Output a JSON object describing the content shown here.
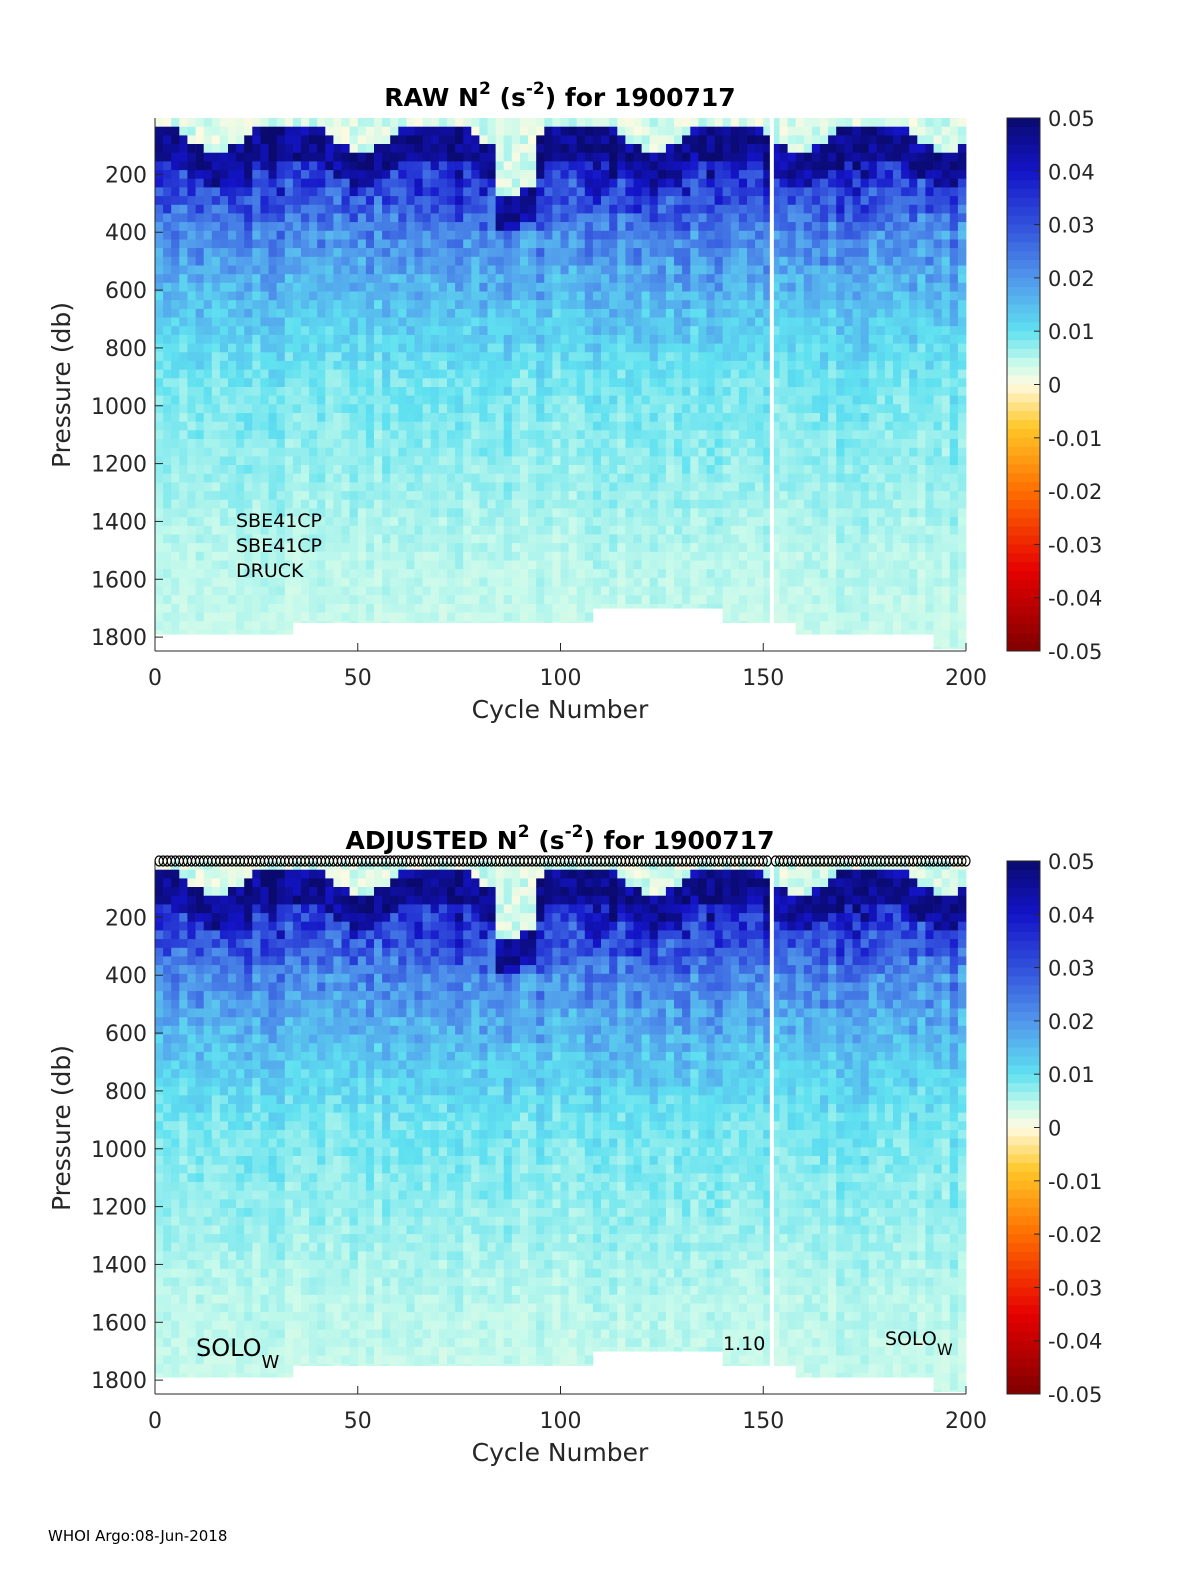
{
  "footer": "WHOI Argo:08-Jun-2018",
  "colors": {
    "axis": "#262626",
    "missing": "#ffffff"
  },
  "chart_data": [
    {
      "type": "heatmap",
      "title_parts": {
        "a": "RAW N",
        "sup1": "2",
        "b": " (s",
        "sup2": "-2",
        "c": ") for 1900717"
      },
      "xlabel": "Cycle Number",
      "ylabel": "Pressure (db)",
      "xlim": [
        0,
        200
      ],
      "ylim": [
        1848,
        5
      ],
      "xticks": [
        "0",
        "50",
        "100",
        "150",
        "200"
      ],
      "yticks": [
        "200",
        "400",
        "600",
        "800",
        "1000",
        "1200",
        "1400",
        "1600",
        "1800"
      ],
      "colorbar": {
        "range": [
          -0.05,
          0.05
        ],
        "ticks": [
          "0.05",
          "0.04",
          "0.03",
          "0.02",
          "0.01",
          "0",
          "-0.01",
          "-0.02",
          "-0.03",
          "-0.04",
          "-0.05"
        ]
      },
      "annotations": [
        "SBE41CP",
        "SBE41CP",
        "DRUCK"
      ],
      "missing_cycles": [
        152
      ],
      "profile": {
        "pressure": [
          0,
          40,
          200,
          400,
          650,
          900,
          1200,
          1500,
          1800
        ],
        "mean_n2": [
          0.0,
          0.045,
          0.035,
          0.022,
          0.014,
          0.009,
          0.007,
          0.005,
          0.004
        ]
      },
      "max_pressure_by_cycle": [
        [
          0,
          33,
          1790
        ],
        [
          33,
          108,
          1750
        ],
        [
          108,
          140,
          1700
        ],
        [
          140,
          158,
          1750
        ],
        [
          158,
          192,
          1790
        ],
        [
          192,
          200,
          1840
        ]
      ]
    },
    {
      "type": "heatmap",
      "title_parts": {
        "a": "ADJUSTED N",
        "sup1": "2",
        "b": " (s",
        "sup2": "-2",
        "c": ") for 1900717"
      },
      "xlabel": "Cycle Number",
      "ylabel": "Pressure (db)",
      "xlim": [
        0,
        200
      ],
      "ylim": [
        1848,
        5
      ],
      "xticks": [
        "0",
        "50",
        "100",
        "150",
        "200"
      ],
      "yticks": [
        "200",
        "400",
        "600",
        "800",
        "1000",
        "1200",
        "1400",
        "1600",
        "1800"
      ],
      "colorbar": {
        "range": [
          -0.05,
          0.05
        ],
        "ticks": [
          "0.05",
          "0.04",
          "0.03",
          "0.02",
          "0.01",
          "0",
          "-0.01",
          "-0.02",
          "-0.03",
          "-0.04",
          "-0.05"
        ]
      },
      "annotations": [
        {
          "text": "SOLO",
          "sub": "W"
        },
        {
          "text": "1.10"
        },
        {
          "text": "SOLO",
          "sub": "W"
        }
      ],
      "markers": "circle at top of every cycle",
      "missing_cycles": [
        152
      ],
      "profile": {
        "pressure": [
          0,
          40,
          200,
          400,
          650,
          900,
          1200,
          1500,
          1800
        ],
        "mean_n2": [
          0.0,
          0.045,
          0.035,
          0.022,
          0.014,
          0.009,
          0.007,
          0.005,
          0.004
        ]
      },
      "max_pressure_by_cycle": [
        [
          0,
          33,
          1790
        ],
        [
          33,
          108,
          1750
        ],
        [
          108,
          140,
          1700
        ],
        [
          140,
          158,
          1750
        ],
        [
          158,
          192,
          1790
        ],
        [
          192,
          200,
          1840
        ]
      ]
    }
  ]
}
